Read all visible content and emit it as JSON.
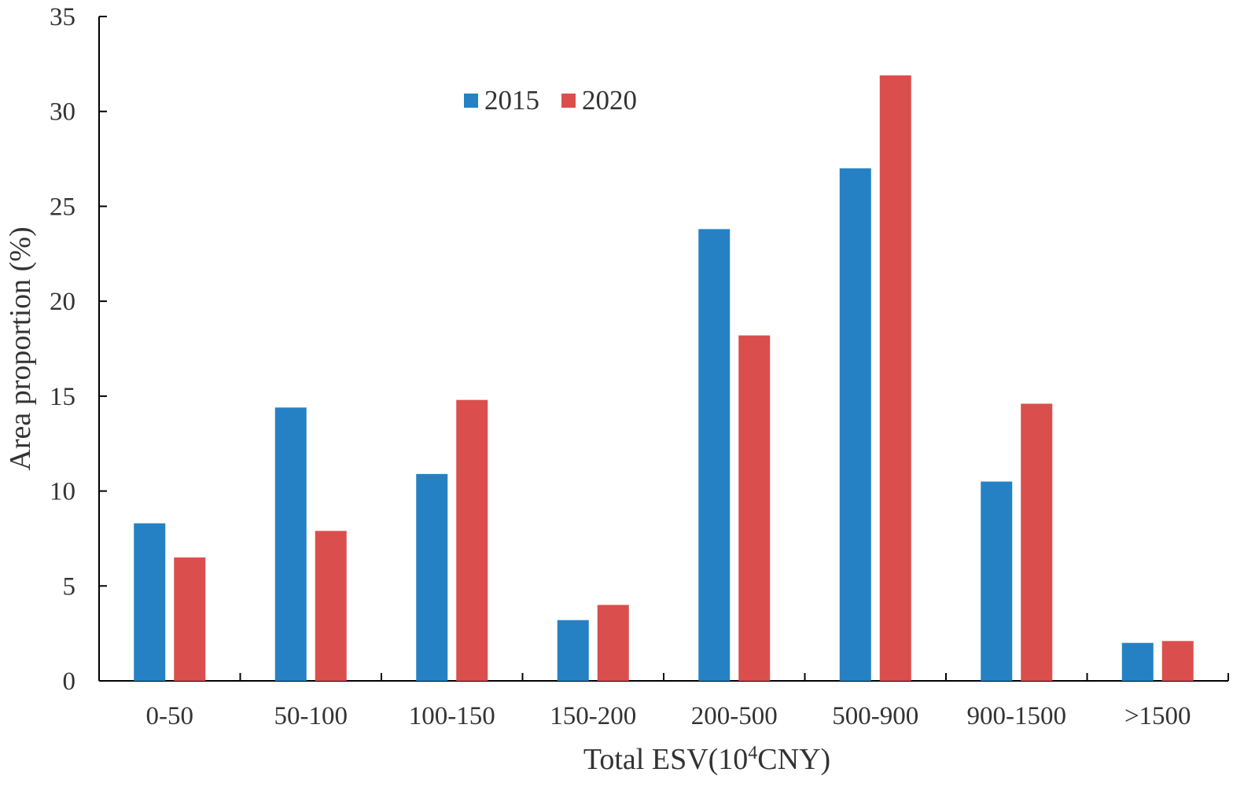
{
  "chart_data": {
    "type": "bar",
    "title": "",
    "xlabel": "Total ESV(10",
    "xlabel_superscript": "4",
    "xlabel_suffix": "CNY)",
    "ylabel": "Area proportion (%)",
    "ylim": [
      0,
      35
    ],
    "yticks": [
      "0",
      "5",
      "10",
      "15",
      "20",
      "25",
      "30",
      "35"
    ],
    "grid": false,
    "legend_position": "top-center",
    "categories": [
      "0-50",
      "50-100",
      "100-150",
      "150-200",
      "200-500",
      "500-900",
      "900-1500",
      ">1500"
    ],
    "series": [
      {
        "name": "2015",
        "color": "#2581C4",
        "values": [
          8.3,
          14.4,
          10.9,
          3.2,
          23.8,
          27.0,
          10.5,
          2.0
        ]
      },
      {
        "name": "2020",
        "color": "#DA4F4D",
        "values": [
          6.5,
          7.9,
          14.8,
          4.0,
          18.2,
          31.9,
          14.6,
          2.1
        ]
      }
    ]
  }
}
